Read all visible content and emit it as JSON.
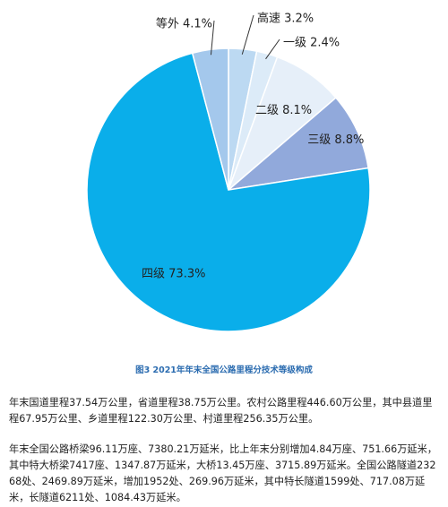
{
  "chart_data": {
    "type": "pie",
    "title": "",
    "slices": [
      {
        "name": "高速",
        "value": 3.2,
        "label": "高速 3.2%",
        "color": "#bcd9f2"
      },
      {
        "name": "一级",
        "value": 2.4,
        "label": "一级 2.4%",
        "color": "#dcebf8"
      },
      {
        "name": "二级",
        "value": 8.1,
        "label": "二级 8.1%",
        "color": "#e6eff9"
      },
      {
        "name": "三级",
        "value": 8.8,
        "label": "三级 8.8%",
        "color": "#91a9db"
      },
      {
        "name": "四级",
        "value": 73.3,
        "label": "四级 73.3%",
        "color": "#0aaeea"
      },
      {
        "name": "等外",
        "value": 4.1,
        "label": "等外 4.1%",
        "color": "#a4c8ec"
      }
    ]
  },
  "caption": "图3  2021年年末全国公路里程分技术等级构成",
  "paragraphs": [
    "年末国道里程37.54万公里，省道里程38.75万公里。农村公路里程446.60万公里，其中县道里程67.95万公里、乡道里程122.30万公里、村道里程256.35万公里。",
    "年末全国公路桥梁96.11万座、7380.21万延米，比上年末分别增加4.84万座、751.66万延米，其中特大桥梁7417座、1347.87万延米，大桥13.45万座、3715.89万延米。全国公路隧道23268处、2469.89万延米，增加1952处、269.96万延米，其中特长隧道1599处、717.08万延米，长隧道6211处、1084.43万延米。"
  ]
}
